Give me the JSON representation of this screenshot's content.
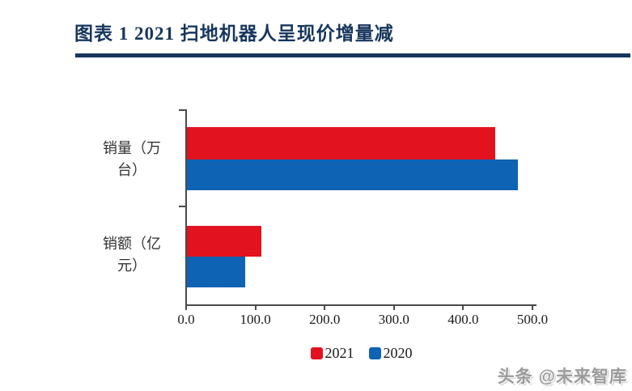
{
  "page": {
    "title": "图表 1  2021 扫地机器人呈现价增量减",
    "watermark": "头条 @未来智库"
  },
  "colors": {
    "title": "#17365d",
    "rule": "#17365d",
    "axis": "#4a4a4a",
    "series_2021": "#e2131e",
    "series_2020": "#0f63b4"
  },
  "chart_data": {
    "type": "bar",
    "orientation": "horizontal",
    "title": "2021 扫地机器人呈现价增量减",
    "categories": [
      "销量（万台）",
      "销额（亿元）"
    ],
    "category_labels_wrapped": [
      "销量（万\n台）",
      "销额（亿\n元）"
    ],
    "series": [
      {
        "name": "2021",
        "color": "#e2131e",
        "values": [
          445,
          108
        ]
      },
      {
        "name": "2020",
        "color": "#0f63b4",
        "values": [
          478,
          84
        ]
      }
    ],
    "xlabel": "",
    "ylabel": "",
    "xlim": [
      0,
      500
    ],
    "x_tick_values": [
      0,
      100,
      200,
      300,
      400,
      500
    ],
    "x_tick_labels": [
      "0.0",
      "100.0",
      "200.0",
      "300.0",
      "400.0",
      "500.0"
    ],
    "grid": false,
    "legend_position": "bottom"
  }
}
